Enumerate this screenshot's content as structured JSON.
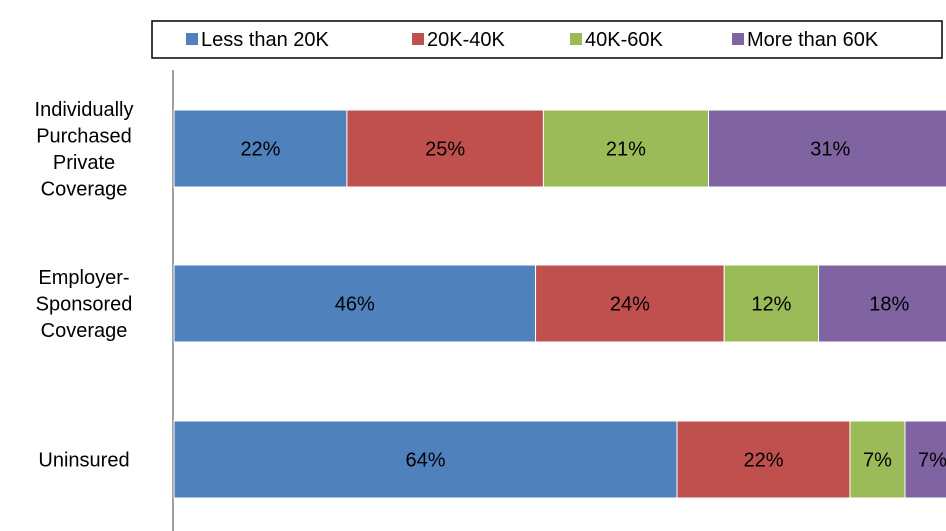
{
  "chart_data": {
    "type": "bar",
    "orientation": "horizontal",
    "stacked": true,
    "categories": [
      [
        "Individually",
        "Purchased",
        "Private",
        "Coverage"
      ],
      [
        "Employer-",
        "Sponsored",
        "Coverage"
      ],
      [
        "Uninsured"
      ]
    ],
    "series": [
      {
        "name": "Less than 20K",
        "values": [
          22,
          46,
          64
        ],
        "labels": [
          "22%",
          "46%",
          "64%"
        ],
        "color": "#4F81BD"
      },
      {
        "name": "20K-40K",
        "values": [
          25,
          24,
          22
        ],
        "labels": [
          "25%",
          "24%",
          "22%"
        ],
        "color": "#C0504D"
      },
      {
        "name": "40K-60K",
        "values": [
          21,
          12,
          7
        ],
        "labels": [
          "21%",
          "12%",
          "7%"
        ],
        "color": "#9BBB59"
      },
      {
        "name": "More than 60K",
        "values": [
          31,
          18,
          7
        ],
        "labels": [
          "31%",
          "18%",
          "7%"
        ],
        "color": "#8064A2"
      }
    ],
    "xlim": [
      0,
      100
    ],
    "legend_position": "top",
    "grid": false,
    "title": "",
    "xlabel": "",
    "ylabel": ""
  }
}
